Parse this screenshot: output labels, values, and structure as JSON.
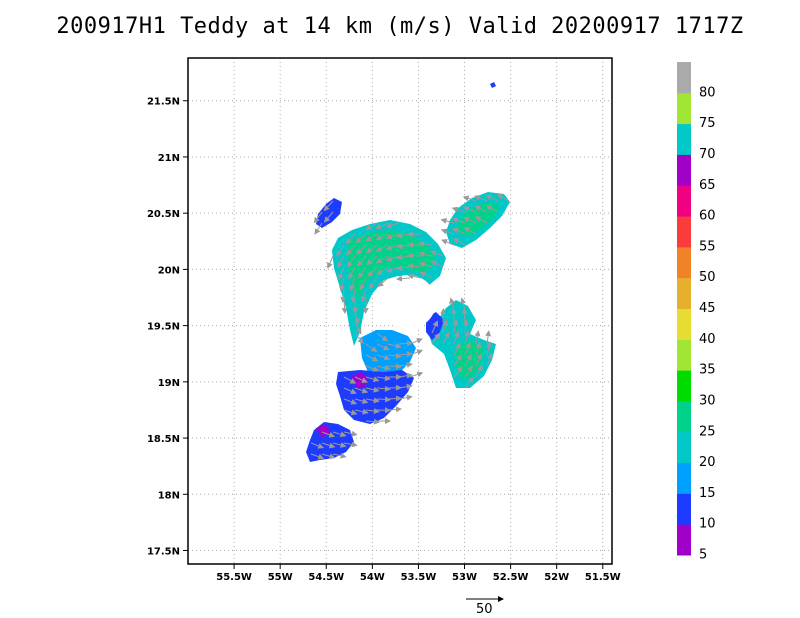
{
  "title": "200917H1 Teddy at 14 km (m/s) Valid 20200917 1717Z",
  "map": {
    "lon_range": [
      -56.0,
      -51.4
    ],
    "lat_range": [
      17.38,
      21.88
    ],
    "lon_ticks": [
      {
        "value": -55.5,
        "label": "55.5W"
      },
      {
        "value": -55.0,
        "label": "55W"
      },
      {
        "value": -54.5,
        "label": "54.5W"
      },
      {
        "value": -54.0,
        "label": "54W"
      },
      {
        "value": -53.5,
        "label": "53.5W"
      },
      {
        "value": -53.0,
        "label": "53W"
      },
      {
        "value": -52.5,
        "label": "52.5W"
      },
      {
        "value": -52.0,
        "label": "52W"
      },
      {
        "value": -51.5,
        "label": "51.5W"
      }
    ],
    "lat_ticks": [
      {
        "value": 17.5,
        "label": "17.5N"
      },
      {
        "value": 18.0,
        "label": "18N"
      },
      {
        "value": 18.5,
        "label": "18.5N"
      },
      {
        "value": 19.0,
        "label": "19N"
      },
      {
        "value": 19.5,
        "label": "19.5N"
      },
      {
        "value": 20.0,
        "label": "20N"
      },
      {
        "value": 20.5,
        "label": "20.5N"
      },
      {
        "value": 21.0,
        "label": "21N"
      },
      {
        "value": 21.5,
        "label": "21.5N"
      }
    ],
    "grid": "dotted",
    "storm_center": {
      "lon": -53.65,
      "lat": 19.63
    }
  },
  "colorbar": {
    "labels": [
      "5",
      "10",
      "15",
      "20",
      "25",
      "30",
      "35",
      "40",
      "45",
      "50",
      "55",
      "60",
      "65",
      "70",
      "75",
      "80"
    ],
    "colors": [
      "#a000c8",
      "#1e3cff",
      "#00a0ff",
      "#00c8c8",
      "#00d28c",
      "#00dc00",
      "#a0e632",
      "#e6dc32",
      "#e6af2d",
      "#f08228",
      "#fa3c3c",
      "#f00082",
      "#8200dc",
      "#00c8c8",
      "#a0e632",
      "#aaaaaa"
    ],
    "bands": [
      "#a000c8",
      "#1e3cff",
      "#00a0ff",
      "#00c8c8",
      "#00d28c",
      "#00dc00",
      "#a0e632",
      "#e6dc32",
      "#e6af2d",
      "#f08228",
      "#fa3c3c",
      "#f00082",
      "#a000c8",
      "#00c8c8",
      "#a0e632",
      "#aaaaaa"
    ]
  },
  "reference_vector": {
    "label": "50",
    "speed": 50
  }
}
